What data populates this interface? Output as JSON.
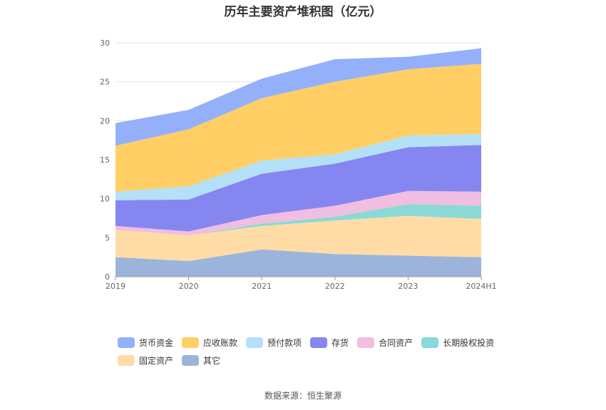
{
  "title": "历年主要资产堆积图（亿元）",
  "source": "数据来源：恒生聚源",
  "chart_data": {
    "type": "area",
    "stacked": true,
    "categories": [
      "2019",
      "2020",
      "2021",
      "2022",
      "2023",
      "2024H1"
    ],
    "ylim": [
      0,
      30
    ],
    "yticks": [
      0,
      5,
      10,
      15,
      20,
      25,
      30
    ],
    "grid": true,
    "legend_position": "bottom",
    "series": [
      {
        "name": "其它",
        "color": "#9cb4dc",
        "values": [
          2.5,
          2.0,
          3.5,
          2.9,
          2.7,
          2.5
        ]
      },
      {
        "name": "固定资产",
        "color": "#ffdca6",
        "values": [
          3.5,
          3.3,
          3.0,
          4.3,
          5.1,
          4.9
        ]
      },
      {
        "name": "长期股权投资",
        "color": "#8ad9d6",
        "values": [
          0.0,
          0.0,
          0.3,
          0.5,
          1.5,
          1.7
        ]
      },
      {
        "name": "合同资产",
        "color": "#f0bee0",
        "values": [
          0.5,
          0.5,
          1.1,
          1.4,
          1.7,
          1.8
        ]
      },
      {
        "name": "存货",
        "color": "#8686f0",
        "values": [
          3.3,
          4.1,
          5.3,
          5.4,
          5.6,
          6.0
        ]
      },
      {
        "name": "预付款项",
        "color": "#b4e0f8",
        "values": [
          1.1,
          1.7,
          1.7,
          1.2,
          1.5,
          1.4
        ]
      },
      {
        "name": "应收账款",
        "color": "#ffcf66",
        "values": [
          5.9,
          7.3,
          8.0,
          9.3,
          8.5,
          9.0
        ]
      },
      {
        "name": "货币资金",
        "color": "#94b0fa",
        "values": [
          2.9,
          2.5,
          2.5,
          2.9,
          1.6,
          2.0
        ]
      }
    ],
    "legend_order": [
      "货币资金",
      "应收账款",
      "预付款项",
      "存货",
      "合同资产",
      "长期股权投资",
      "固定资产",
      "其它"
    ]
  }
}
